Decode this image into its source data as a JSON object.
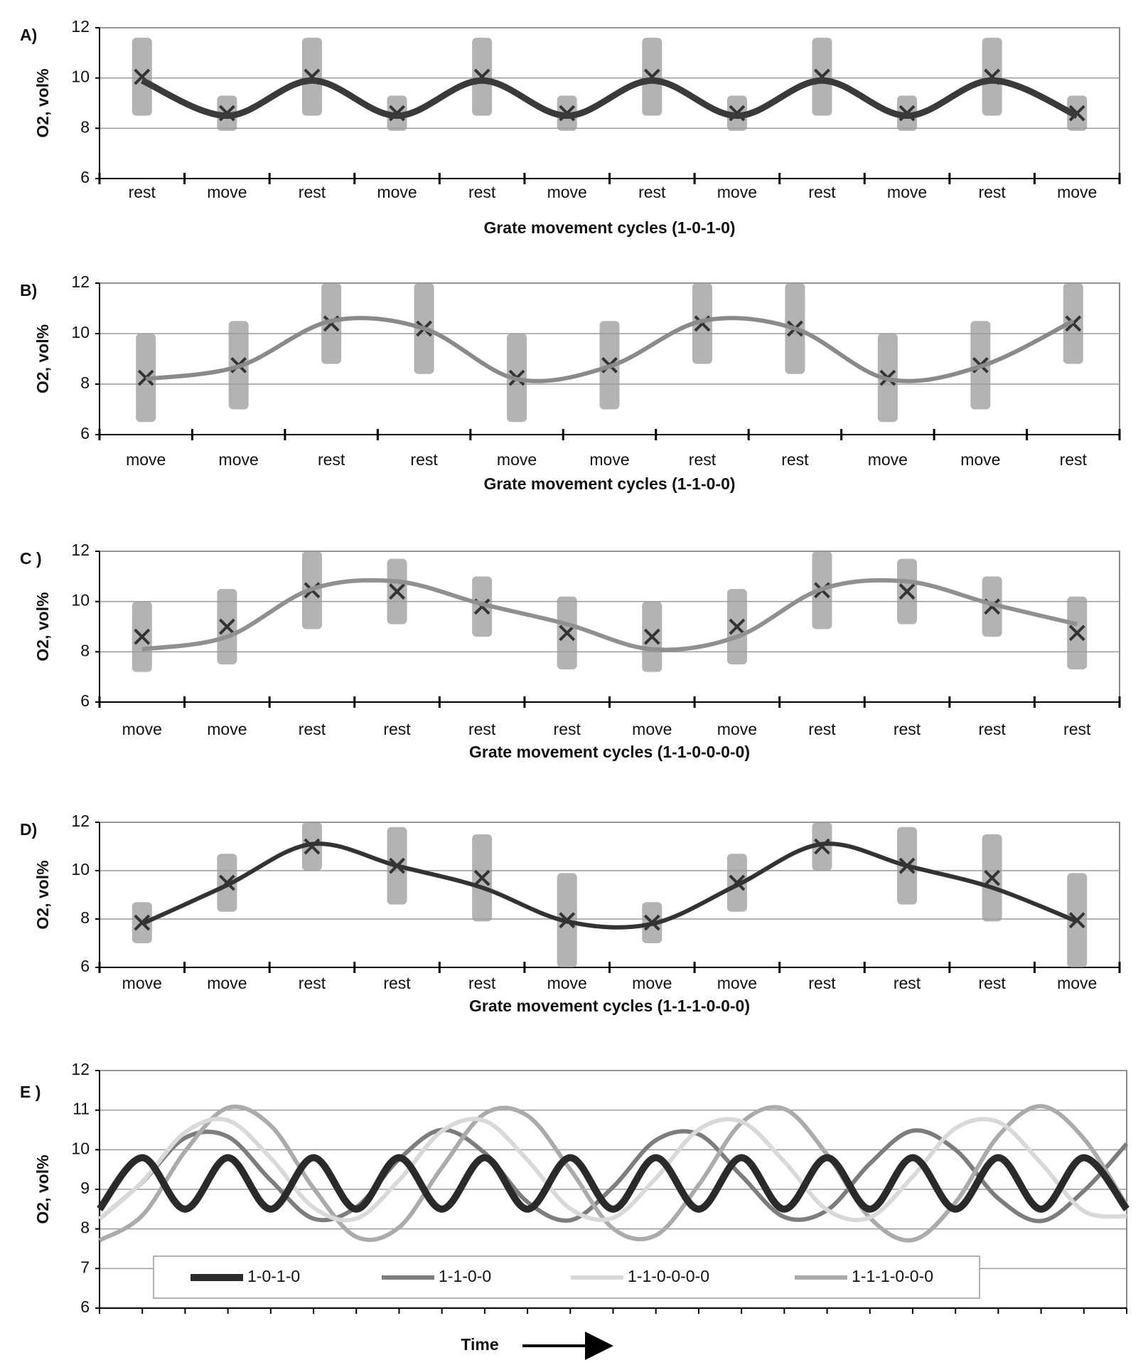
{
  "chart_data": [
    {
      "type": "line",
      "label": "A)",
      "xlabel": "Grate movement cycles (1-0-1-0)",
      "ylabel": "O2, vol%",
      "categories": [
        "rest",
        "move",
        "rest",
        "move",
        "rest",
        "move",
        "rest",
        "move",
        "rest",
        "move",
        "rest",
        "move"
      ],
      "values": [
        9.9,
        8.5,
        9.9,
        8.5,
        9.9,
        8.5,
        9.9,
        8.5,
        9.9,
        8.5,
        9.9,
        8.5
      ],
      "low": [
        8.5,
        7.9,
        8.5,
        7.9,
        8.5,
        7.9,
        8.5,
        7.9,
        8.5,
        7.9,
        8.5,
        7.9
      ],
      "high": [
        11.6,
        9.3,
        11.6,
        9.3,
        11.6,
        9.3,
        11.6,
        9.3,
        11.6,
        9.3,
        11.6,
        9.3
      ],
      "color": "#3a3a3a",
      "ylim": [
        6,
        12
      ],
      "yticks": [
        6,
        8,
        10,
        12
      ],
      "grid": true
    },
    {
      "type": "line",
      "label": "B)",
      "xlabel": "Grate movement cycles (1-1-0-0)",
      "ylabel": "O2, vol%",
      "categories": [
        "move",
        "move",
        "rest",
        "rest",
        "move",
        "move",
        "rest",
        "rest",
        "move",
        "move",
        "rest"
      ],
      "values": [
        8.2,
        8.7,
        10.5,
        10.2,
        8.2,
        8.7,
        10.5,
        10.2,
        8.2,
        8.7,
        10.5
      ],
      "low": [
        6.5,
        7.0,
        8.8,
        8.4,
        6.5,
        7.0,
        8.8,
        8.4,
        6.5,
        7.0,
        8.8
      ],
      "high": [
        10.0,
        10.5,
        12.0,
        12.0,
        10.0,
        10.5,
        12.0,
        12.0,
        10.0,
        10.5,
        12.0
      ],
      "color": "#8a8a8a",
      "ylim": [
        6,
        12
      ],
      "yticks": [
        6,
        8,
        10,
        12
      ],
      "grid": true
    },
    {
      "type": "line",
      "label": "C )",
      "xlabel": "Grate movement cycles (1-1-0-0-0-0)",
      "ylabel": "O2, vol%",
      "categories": [
        "move",
        "move",
        "rest",
        "rest",
        "rest",
        "rest",
        "move",
        "move",
        "rest",
        "rest",
        "rest",
        "rest"
      ],
      "values": [
        8.1,
        8.6,
        10.5,
        10.8,
        9.9,
        9.1,
        8.1,
        8.6,
        10.5,
        10.8,
        9.9,
        9.1
      ],
      "low": [
        7.2,
        7.5,
        8.9,
        9.1,
        8.6,
        7.3,
        7.2,
        7.5,
        8.9,
        9.1,
        8.6,
        7.3
      ],
      "high": [
        10.0,
        10.5,
        12.0,
        11.7,
        11.0,
        10.2,
        10.0,
        10.5,
        12.0,
        11.7,
        11.0,
        10.2
      ],
      "color": "#909090",
      "ylim": [
        6,
        12
      ],
      "yticks": [
        6,
        8,
        10,
        12
      ],
      "grid": true
    },
    {
      "type": "line",
      "label": "D)",
      "xlabel": "Grate movement cycles (1-1-1-0-0-0)",
      "ylabel": "O2, vol%",
      "categories": [
        "move",
        "move",
        "rest",
        "rest",
        "rest",
        "move",
        "move",
        "move",
        "rest",
        "rest",
        "rest",
        "move"
      ],
      "values": [
        7.8,
        9.4,
        11.1,
        10.2,
        9.3,
        7.9,
        7.8,
        9.4,
        11.1,
        10.2,
        9.3,
        7.9
      ],
      "low": [
        7.0,
        8.3,
        10.0,
        8.6,
        7.9,
        6.0,
        7.0,
        8.3,
        10.0,
        8.6,
        7.9,
        6.0
      ],
      "high": [
        8.7,
        10.7,
        12.0,
        11.8,
        11.5,
        9.9,
        8.7,
        10.7,
        12.0,
        11.8,
        11.5,
        9.9
      ],
      "color": "#333333",
      "ylim": [
        6,
        12
      ],
      "yticks": [
        6,
        8,
        10,
        12
      ],
      "grid": true
    },
    {
      "type": "multiline",
      "label": "E )",
      "xlabel": "Time",
      "ylabel": "O2, vol%",
      "ylim": [
        6,
        12
      ],
      "yticks": [
        6,
        7,
        8,
        9,
        10,
        11,
        12
      ],
      "grid": true,
      "legend": "bottom",
      "series": [
        {
          "name": "1-0-1-0",
          "color": "#2a2a2a",
          "values": [
            8.5,
            9.8,
            8.5,
            9.8,
            8.5,
            9.8,
            8.5,
            9.8,
            8.5,
            9.8,
            8.5,
            9.8,
            8.5,
            9.8,
            8.5,
            9.8,
            8.5,
            9.8,
            8.5,
            9.8,
            8.5,
            9.8,
            8.5,
            9.8,
            8.5
          ]
        },
        {
          "name": "1-1-0-0",
          "color": "#7d7d7d",
          "values": [
            8.25,
            9.18,
            10.3,
            10.33,
            9.23,
            8.26,
            8.55,
            9.76,
            10.5,
            9.92,
            8.68,
            8.22,
            9.06,
            10.24,
            10.39,
            9.34,
            8.3,
            8.47,
            9.65,
            10.48,
            10.0,
            8.77,
            8.2,
            8.96,
            10.15
          ]
        },
        {
          "name": "1-1-0-0-0-0",
          "color": "#d9d9d9",
          "values": [
            8.25,
            9.19,
            10.44,
            10.74,
            9.79,
            8.54,
            8.26,
            9.23,
            10.47,
            10.73,
            9.74,
            8.51,
            8.28,
            9.28,
            10.51,
            10.71,
            9.7,
            8.48,
            8.29,
            9.32,
            10.54,
            10.7,
            9.66,
            8.45,
            8.32
          ]
        },
        {
          "name": "1-1-1-0-0-0",
          "color": "#ababab",
          "values": [
            7.71,
            8.34,
            9.96,
            11.06,
            10.61,
            9.03,
            7.8,
            8.04,
            9.55,
            10.91,
            10.86,
            9.5,
            8.01,
            7.84,
            9.11,
            10.68,
            11.03,
            9.88,
            8.28,
            7.72,
            8.67,
            10.35,
            11.1,
            10.28,
            8.6
          ]
        }
      ]
    }
  ]
}
